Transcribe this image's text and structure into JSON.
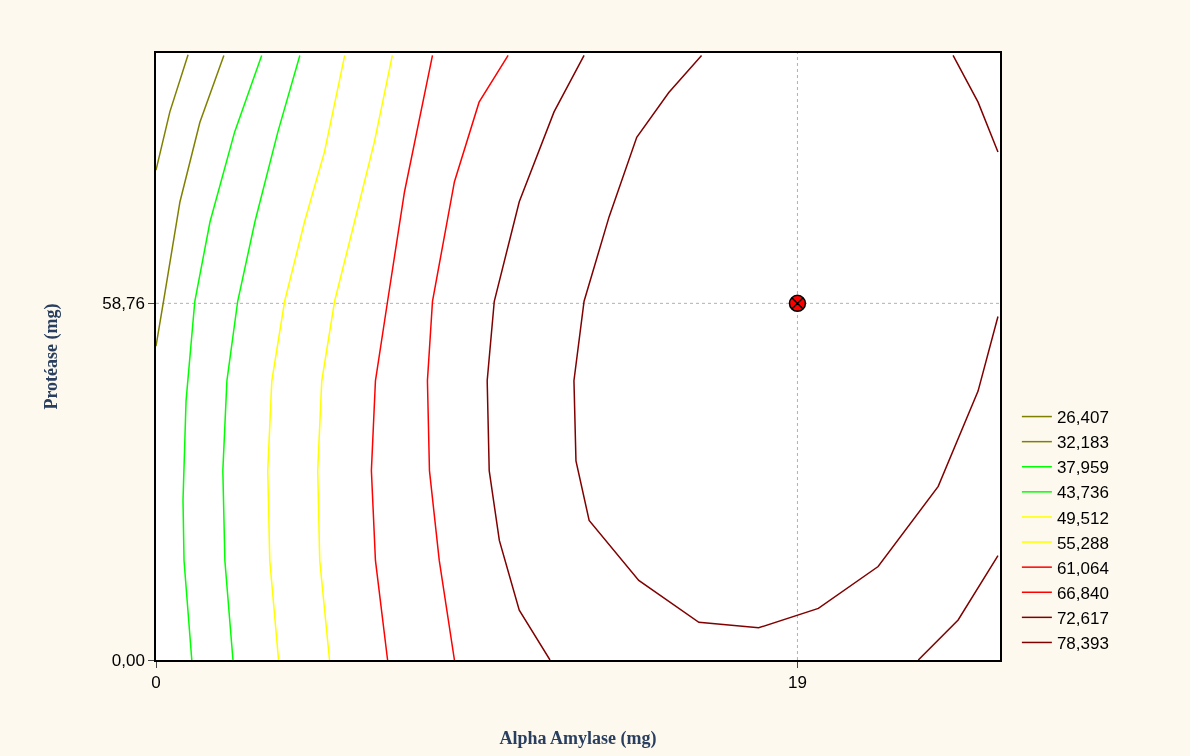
{
  "chart_data": {
    "type": "line",
    "xlabel": "Alpha Amylase (mg)",
    "ylabel": "Protéase (mg)",
    "xlim": [
      0,
      25
    ],
    "ylim": [
      0,
      100
    ],
    "xticks": [
      0,
      19
    ],
    "yticks": [
      {
        "value": 0,
        "label": "0,00"
      },
      {
        "value": 58.76,
        "label": "58,76"
      }
    ],
    "grid": false,
    "legend": "right",
    "marker": "none",
    "line_style": "solid",
    "ref_lines": [
      {
        "axis": "x",
        "value": 19,
        "color": "#b0b0b0",
        "line_style": "dotted"
      },
      {
        "axis": "y",
        "value": 58.76,
        "color": "#b0b0b0",
        "line_style": "dotted"
      }
    ],
    "series": [
      {
        "name": "26,407",
        "color": "#808000",
        "x": [
          0,
          0.41,
          0.95
        ],
        "values": [
          80.7,
          90.3,
          99.7
        ]
      },
      {
        "name": "32,183",
        "color": "#808000",
        "x": [
          0,
          0.27,
          0.71,
          1.3,
          2.01
        ],
        "values": [
          51.7,
          60.7,
          75.5,
          88.6,
          99.6
        ]
      },
      {
        "name": "37,959",
        "color": "#00ff00",
        "x": [
          1.06,
          0.83,
          0.8,
          0.89,
          1.15,
          1.6,
          2.33,
          3.13
        ],
        "values": [
          0,
          16.4,
          26.3,
          42.7,
          59.1,
          72.2,
          87.0,
          99.6
        ]
      },
      {
        "name": "43,736",
        "color": "#00ff00",
        "x": [
          2.28,
          2.04,
          1.98,
          2.1,
          2.42,
          2.93,
          3.61,
          4.26
        ],
        "values": [
          0,
          16.4,
          31.2,
          46.0,
          59.1,
          72.2,
          87.0,
          99.6
        ]
      },
      {
        "name": "49,512",
        "color": "#ffff00",
        "x": [
          3.63,
          3.37,
          3.31,
          3.43,
          3.81,
          4.4,
          4.99,
          5.59
        ],
        "values": [
          0,
          16.4,
          31.2,
          46.0,
          59.1,
          72.2,
          83.7,
          99.6
        ]
      },
      {
        "name": "55,288",
        "color": "#ffff00",
        "x": [
          5.14,
          4.85,
          4.79,
          4.91,
          5.29,
          5.88,
          6.47,
          7.0
        ],
        "values": [
          0,
          16.4,
          31.2,
          46.0,
          59.1,
          72.2,
          85.4,
          99.6
        ]
      },
      {
        "name": "61,064",
        "color": "#ff0000",
        "x": [
          6.86,
          6.5,
          6.38,
          6.5,
          6.86,
          7.36,
          8.19
        ],
        "values": [
          0,
          16.4,
          31.2,
          46.0,
          59.1,
          77.1,
          99.6
        ]
      },
      {
        "name": "66,840",
        "color": "#ff0000",
        "x": [
          8.84,
          8.39,
          8.1,
          8.04,
          8.19,
          8.84,
          9.57,
          10.43
        ],
        "values": [
          0,
          16.4,
          31.2,
          46.0,
          59.1,
          78.8,
          91.9,
          99.6
        ]
      },
      {
        "name": "72,617",
        "color": "#800000",
        "x": [
          11.67,
          10.76,
          10.17,
          9.87,
          9.81,
          10.02,
          10.76,
          11.79,
          12.68,
          null,
          23.61,
          24.35,
          24.94,
          null,
          22.58,
          23.76,
          24.94
        ],
        "values": [
          0,
          8.2,
          19.7,
          31.2,
          46.0,
          59.1,
          75.5,
          90.3,
          99.6,
          null,
          99.6,
          91.9,
          83.7,
          null,
          0,
          6.6,
          17.2
        ]
      },
      {
        "name": "78,393",
        "color": "#800000",
        "x": [
          16.16,
          15.19,
          14.24,
          13.42,
          12.68,
          12.38,
          12.44,
          12.83,
          14.3,
          16.08,
          17.85,
          19.62,
          21.39,
          23.17,
          24.35,
          24.94
        ],
        "values": [
          99.6,
          93.5,
          86.1,
          73.0,
          59.1,
          46.0,
          32.8,
          23.0,
          13.1,
          6.2,
          5.3,
          8.5,
          15.4,
          28.6,
          44.3,
          56.6
        ]
      },
      {
        "type": "scatter",
        "color": "#ff0000",
        "marker": "cross",
        "x": [
          19
        ],
        "values": [
          58.76
        ]
      }
    ]
  }
}
